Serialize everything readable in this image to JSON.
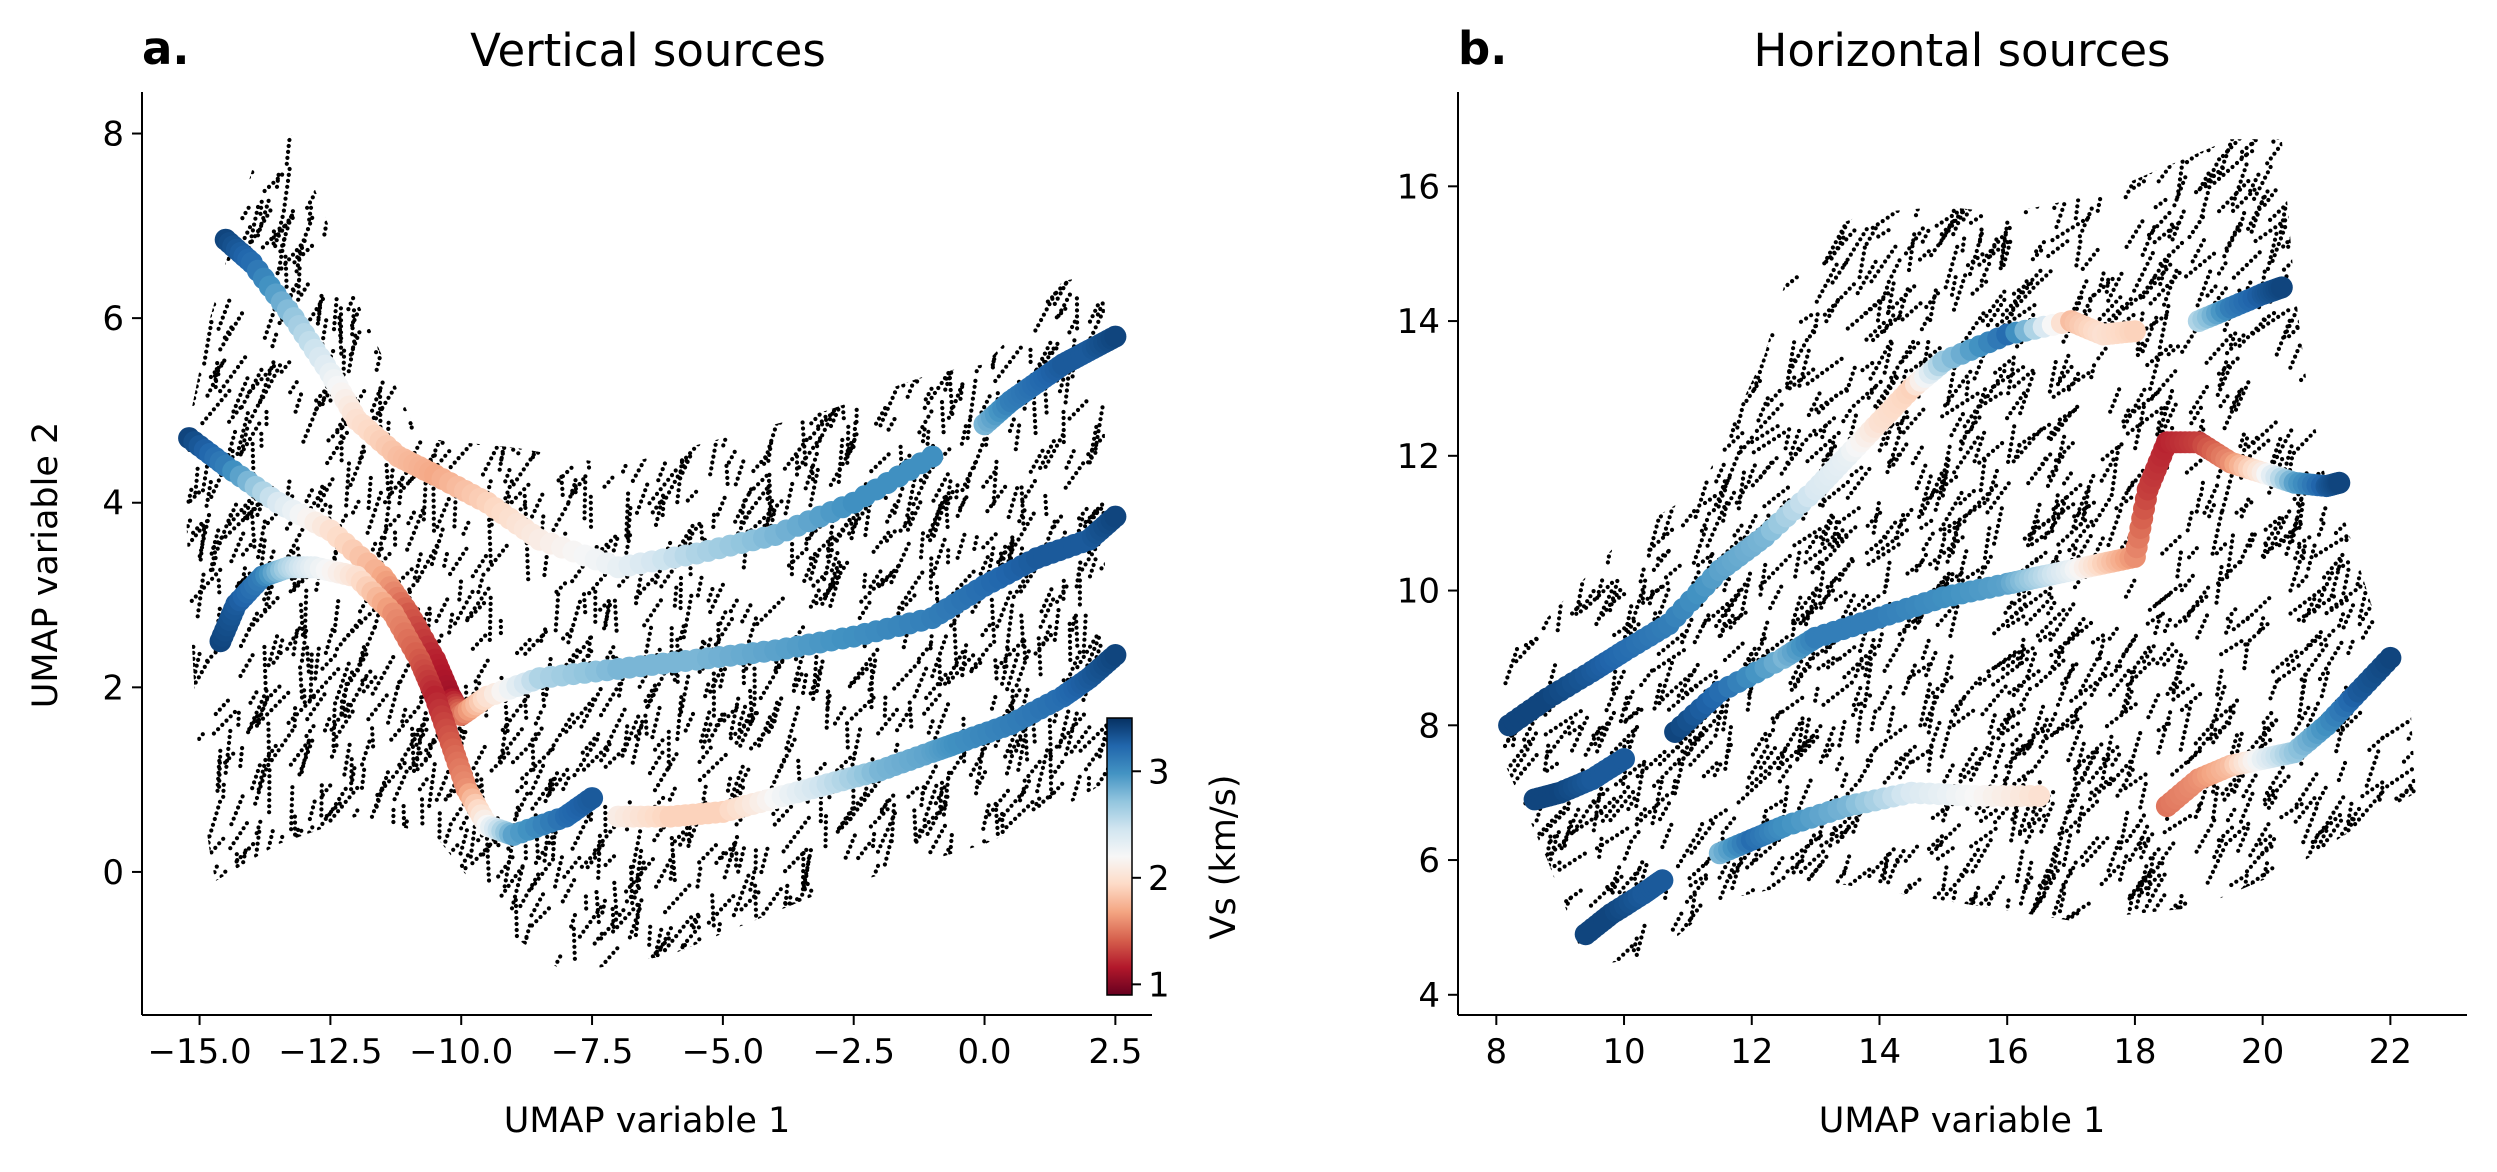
{
  "figure": {
    "colormap": "RdBu",
    "colors": {
      "bg_points": "#000000",
      "low": "#b2182b",
      "mid": "#f7f7f7",
      "high": "#2166ac"
    }
  },
  "chart_data": [
    {
      "type": "scatter",
      "letter": "a.",
      "title": "Vertical sources",
      "xlabel": "UMAP variable 1",
      "ylabel": "UMAP variable 2",
      "xlim": [
        -16.1,
        3.2
      ],
      "ylim": [
        -1.55,
        8.45
      ],
      "xticks": [
        -15.0,
        -12.5,
        -10.0,
        -7.5,
        -5.0,
        -2.5,
        0.0,
        2.5
      ],
      "xtick_labels": [
        "−15.0",
        "−12.5",
        "−10.0",
        "−7.5",
        "−5.0",
        "−2.5",
        "0.0",
        "2.5"
      ],
      "yticks": [
        0,
        2,
        4,
        6,
        8
      ],
      "ytick_labels": [
        "0",
        "2",
        "4",
        "6",
        "8"
      ],
      "background_cloud": {
        "color": "#000000",
        "outline": [
          [
            -14.7,
            -0.1
          ],
          [
            -13.5,
            0.3
          ],
          [
            -12.0,
            0.6
          ],
          [
            -10.5,
            0.4
          ],
          [
            -9.0,
            -0.7
          ],
          [
            -8.0,
            -1.1
          ],
          [
            -6.0,
            -0.9
          ],
          [
            -3.0,
            -0.2
          ],
          [
            0.0,
            0.3
          ],
          [
            1.5,
            0.7
          ],
          [
            2.4,
            1.0
          ],
          [
            2.3,
            3.0
          ],
          [
            2.3,
            6.5
          ],
          [
            1.5,
            6.4
          ],
          [
            0.0,
            5.5
          ],
          [
            -1.0,
            5.4
          ],
          [
            -3.0,
            5.0
          ],
          [
            -5.0,
            4.7
          ],
          [
            -7.0,
            4.4
          ],
          [
            -9.0,
            4.6
          ],
          [
            -10.8,
            4.7
          ],
          [
            -12.0,
            6.2
          ],
          [
            -13.2,
            8.0
          ],
          [
            -14.0,
            7.6
          ],
          [
            -14.8,
            6.0
          ],
          [
            -15.3,
            4.6
          ],
          [
            -15.2,
            3.0
          ],
          [
            -15.0,
            1.0
          ],
          [
            -14.8,
            0.2
          ]
        ]
      },
      "tracks": [
        {
          "x": [
            -14.5,
            -14.0,
            -13.2,
            -12.5,
            -12.0,
            -11.2,
            -10.5,
            -9.5,
            -8.5,
            -7.0,
            -5.5,
            -4.0,
            -2.5,
            -1.0
          ],
          "y": [
            6.85,
            6.6,
            6.0,
            5.4,
            4.9,
            4.5,
            4.3,
            4.0,
            3.6,
            3.3,
            3.45,
            3.65,
            4.0,
            4.5
          ],
          "vs": [
            3.4,
            3.2,
            2.7,
            2.3,
            2.0,
            1.8,
            1.7,
            1.9,
            2.1,
            2.3,
            2.6,
            2.8,
            3.0,
            3.0
          ]
        },
        {
          "x": [
            -15.2,
            -14.5,
            -13.5,
            -12.5,
            -11.5,
            -11.0,
            -10.5,
            -10.2,
            -10.0,
            -9.5,
            -8.5,
            -7.0,
            -5.5,
            -4.0,
            -2.5,
            -1.0,
            0.0,
            1.0,
            2.0,
            2.5
          ],
          "y": [
            4.7,
            4.4,
            4.0,
            3.7,
            3.2,
            2.8,
            2.3,
            1.9,
            1.7,
            1.9,
            2.1,
            2.2,
            2.3,
            2.4,
            2.55,
            2.75,
            3.1,
            3.4,
            3.6,
            3.85
          ],
          "vs": [
            3.4,
            3.1,
            2.4,
            2.0,
            1.7,
            1.4,
            1.2,
            1.1,
            1.5,
            2.0,
            2.6,
            2.8,
            2.8,
            2.9,
            3.0,
            3.1,
            3.2,
            3.3,
            3.3,
            3.4
          ]
        },
        {
          "x": [
            -14.6,
            -14.3,
            -13.8,
            -13.3,
            -12.8,
            -12.0,
            -11.3,
            -10.8,
            -10.5,
            -10.2,
            -9.9,
            -9.5,
            -9.0,
            -8.0,
            -7.5
          ],
          "y": [
            2.5,
            2.9,
            3.2,
            3.3,
            3.3,
            3.2,
            2.8,
            2.3,
            1.9,
            1.4,
            0.9,
            0.5,
            0.4,
            0.6,
            0.8
          ],
          "vs": [
            3.4,
            3.3,
            3.1,
            2.6,
            2.3,
            2.0,
            1.6,
            1.4,
            1.2,
            1.4,
            1.6,
            2.2,
            2.9,
            3.2,
            3.3
          ]
        },
        {
          "x": [
            -7.0,
            -6.0,
            -5.0,
            -4.0,
            -3.0,
            -2.0,
            -1.0,
            -0.5,
            0.5,
            1.5,
            2.0,
            2.5
          ],
          "y": [
            0.6,
            0.6,
            0.65,
            0.8,
            0.95,
            1.1,
            1.3,
            1.4,
            1.6,
            1.9,
            2.1,
            2.35
          ],
          "vs": [
            2.1,
            1.9,
            1.9,
            2.2,
            2.5,
            2.8,
            2.9,
            3.0,
            3.1,
            3.2,
            3.3,
            3.4
          ]
        },
        {
          "x": [
            0.0,
            0.5,
            1.0,
            1.5,
            2.0,
            2.5
          ],
          "y": [
            4.85,
            5.1,
            5.3,
            5.5,
            5.65,
            5.8
          ],
          "vs": [
            2.8,
            3.1,
            3.2,
            3.3,
            3.3,
            3.4
          ]
        }
      ]
    },
    {
      "type": "scatter",
      "letter": "b.",
      "title": "Horizontal sources",
      "xlabel": "UMAP variable 1",
      "ylabel": "",
      "xlim": [
        7.4,
        23.2
      ],
      "ylim": [
        3.7,
        17.4
      ],
      "xticks": [
        8,
        10,
        12,
        14,
        16,
        18,
        20,
        22
      ],
      "xtick_labels": [
        "8",
        "10",
        "12",
        "14",
        "16",
        "18",
        "20",
        "22"
      ],
      "yticks": [
        4,
        6,
        8,
        10,
        12,
        14,
        16
      ],
      "ytick_labels": [
        "4",
        "6",
        "8",
        "10",
        "12",
        "14",
        "16"
      ],
      "background_cloud": {
        "color": "#000000",
        "outline": [
          [
            9.4,
            4.4
          ],
          [
            10.5,
            4.6
          ],
          [
            11.5,
            5.4
          ],
          [
            13.0,
            5.7
          ],
          [
            15.0,
            5.4
          ],
          [
            17.0,
            5.1
          ],
          [
            19.0,
            5.3
          ],
          [
            20.5,
            5.9
          ],
          [
            21.5,
            6.5
          ],
          [
            22.4,
            7.0
          ],
          [
            22.3,
            8.5
          ],
          [
            21.8,
            9.5
          ],
          [
            21.3,
            11.0
          ],
          [
            21.0,
            11.6
          ],
          [
            20.7,
            13.0
          ],
          [
            20.5,
            14.5
          ],
          [
            20.3,
            16.7
          ],
          [
            19.5,
            16.7
          ],
          [
            17.5,
            15.9
          ],
          [
            16.0,
            15.6
          ],
          [
            15.0,
            15.7
          ],
          [
            13.8,
            15.6
          ],
          [
            13.0,
            15.3
          ],
          [
            12.5,
            14.5
          ],
          [
            12.2,
            13.5
          ],
          [
            11.2,
            11.5
          ],
          [
            10.0,
            10.8
          ],
          [
            8.8,
            9.6
          ],
          [
            8.1,
            9.0
          ],
          [
            8.1,
            7.5
          ],
          [
            8.8,
            6.0
          ],
          [
            9.2,
            5.0
          ]
        ]
      },
      "tracks": [
        {
          "x": [
            8.2,
            8.8,
            9.5,
            10.0,
            10.7,
            11.5,
            12.2,
            13.0,
            13.5,
            14.0,
            14.5,
            15.0,
            16.0,
            17.0,
            17.5,
            18.0
          ],
          "y": [
            8.0,
            8.4,
            8.8,
            9.1,
            9.5,
            10.3,
            10.8,
            11.5,
            12.0,
            12.5,
            13.0,
            13.4,
            13.8,
            14.0,
            13.8,
            13.85
          ],
          "vs": [
            3.4,
            3.4,
            3.3,
            3.2,
            3.1,
            2.9,
            2.8,
            2.4,
            2.3,
            2.0,
            1.9,
            2.7,
            3.2,
            1.8,
            2.0,
            1.9
          ]
        },
        {
          "x": [
            19.0,
            19.5,
            20.0,
            20.3
          ],
          "y": [
            14.0,
            14.2,
            14.4,
            14.5
          ],
          "vs": [
            2.6,
            3.1,
            3.3,
            3.4
          ]
        },
        {
          "x": [
            10.8,
            11.5,
            12.5,
            13.0,
            14.0,
            15.0,
            16.0,
            16.5,
            17.0,
            17.5,
            18.0,
            18.2,
            18.5,
            19.0,
            19.5,
            20.0,
            20.5,
            21.0,
            21.2
          ],
          "y": [
            7.9,
            8.5,
            9.0,
            9.3,
            9.6,
            9.9,
            10.1,
            10.2,
            10.3,
            10.4,
            10.5,
            11.5,
            12.2,
            12.2,
            11.9,
            11.75,
            11.6,
            11.55,
            11.6
          ],
          "vs": [
            3.4,
            3.2,
            2.8,
            3.1,
            3.1,
            3.0,
            2.9,
            2.6,
            2.3,
            1.9,
            1.6,
            1.3,
            1.2,
            1.3,
            1.6,
            2.1,
            2.9,
            3.3,
            3.4
          ]
        },
        {
          "x": [
            8.6,
            9.0,
            9.5,
            10.0
          ],
          "y": [
            6.9,
            7.0,
            7.2,
            7.5
          ],
          "vs": [
            3.4,
            3.4,
            3.3,
            3.3
          ]
        },
        {
          "x": [
            9.4,
            9.8,
            10.3,
            10.6
          ],
          "y": [
            4.9,
            5.2,
            5.5,
            5.7
          ],
          "vs": [
            3.4,
            3.4,
            3.3,
            3.3
          ]
        },
        {
          "x": [
            11.5,
            12.0,
            12.5,
            13.5,
            14.5,
            15.5,
            16.5
          ],
          "y": [
            6.1,
            6.3,
            6.5,
            6.8,
            7.0,
            6.95,
            6.95
          ],
          "vs": [
            2.8,
            3.2,
            3.0,
            2.8,
            2.4,
            2.2,
            2.0
          ]
        },
        {
          "x": [
            18.5,
            19.0,
            19.5,
            20.0,
            20.5,
            21.0,
            21.5,
            22.0
          ],
          "y": [
            6.8,
            7.2,
            7.4,
            7.5,
            7.6,
            8.0,
            8.5,
            9.0
          ],
          "vs": [
            1.5,
            1.6,
            1.8,
            2.3,
            2.7,
            3.0,
            3.3,
            3.4
          ]
        }
      ]
    }
  ],
  "colorbar": {
    "label": "Vs (km/s)",
    "ticks": [
      1,
      2,
      3
    ],
    "tick_labels": [
      "1",
      "2",
      "3"
    ],
    "vmin": 0.9,
    "vmax": 3.5,
    "colors": [
      "#67001f",
      "#b2182b",
      "#d6604d",
      "#f4a582",
      "#fddbc7",
      "#f7f7f7",
      "#d1e5f0",
      "#92c5de",
      "#4393c3",
      "#2166ac",
      "#053061"
    ]
  }
}
